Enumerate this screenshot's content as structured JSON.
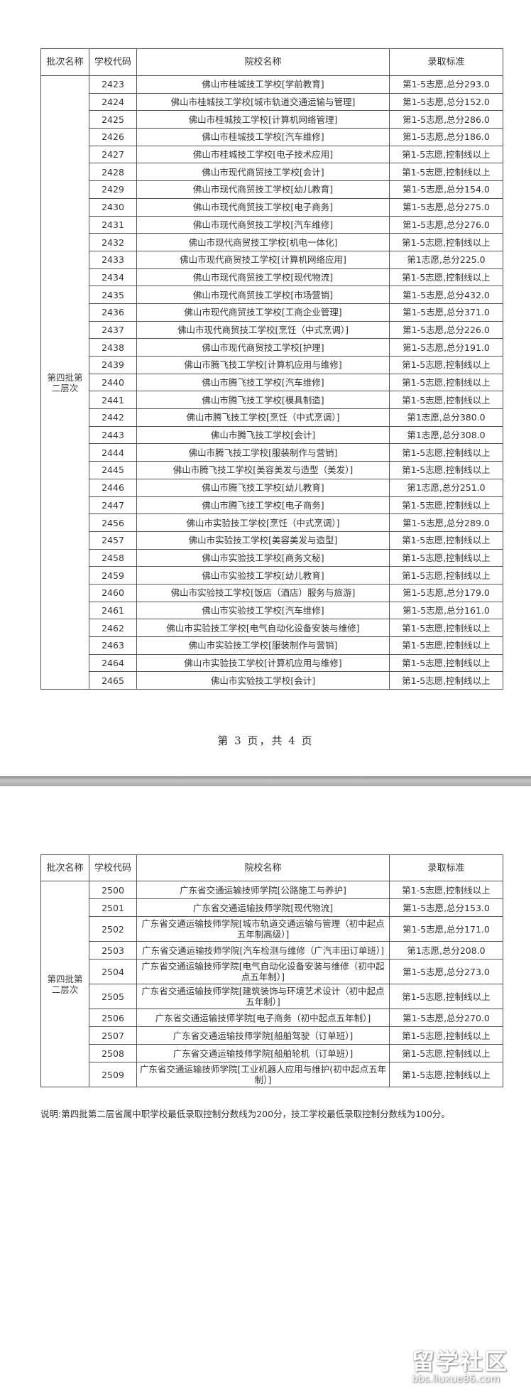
{
  "headers": [
    "批次名称",
    "学校代码",
    "院校名称",
    "录取标准"
  ],
  "batch_name": "第四批第二层次",
  "page1": {
    "rows": [
      [
        "2423",
        "佛山市桂城技工学校[学前教育]",
        "第1-5志愿,总分293.0"
      ],
      [
        "2424",
        "佛山市桂城技工学校[城市轨道交通运输与管理]",
        "第1-5志愿,总分152.0"
      ],
      [
        "2425",
        "佛山市桂城技工学校[计算机网络管理]",
        "第1-5志愿,总分286.0"
      ],
      [
        "2426",
        "佛山市桂城技工学校[汽车维修]",
        "第1-5志愿,总分186.0"
      ],
      [
        "2427",
        "佛山市桂城技工学校[电子技术应用]",
        "第1-5志愿,控制线以上"
      ],
      [
        "2428",
        "佛山市现代商贸技工学校[会计]",
        "第1-5志愿,控制线以上"
      ],
      [
        "2429",
        "佛山市现代商贸技工学校[幼儿教育]",
        "第1-5志愿,总分154.0"
      ],
      [
        "2430",
        "佛山市现代商贸技工学校[电子商务]",
        "第1-5志愿,总分275.0"
      ],
      [
        "2431",
        "佛山市现代商贸技工学校[汽车维修]",
        "第1-5志愿,总分276.0"
      ],
      [
        "2432",
        "佛山市现代商贸技工学校[机电一体化]",
        "第1-5志愿,控制线以上"
      ],
      [
        "2433",
        "佛山市现代商贸技工学校[计算机网络应用]",
        "第1志愿,总分225.0"
      ],
      [
        "2434",
        "佛山市现代商贸技工学校[现代物流]",
        "第1-5志愿,控制线以上"
      ],
      [
        "2435",
        "佛山市现代商贸技工学校[市场营销]",
        "第1-5志愿,总分432.0"
      ],
      [
        "2436",
        "佛山市现代商贸技工学校[工商企业管理]",
        "第1-5志愿,总分371.0"
      ],
      [
        "2437",
        "佛山市现代商贸技工学校[烹饪（中式烹调）]",
        "第1-5志愿,总分226.0"
      ],
      [
        "2438",
        "佛山市现代商贸技工学校[护理]",
        "第1-5志愿,总分191.0"
      ],
      [
        "2439",
        "佛山市腾飞技工学校[计算机应用与维修]",
        "第1-5志愿,控制线以上"
      ],
      [
        "2440",
        "佛山市腾飞技工学校[汽车维修]",
        "第1-5志愿,控制线以上"
      ],
      [
        "2441",
        "佛山市腾飞技工学校[模具制造]",
        "第1-5志愿,控制线以上"
      ],
      [
        "2442",
        "佛山市腾飞技工学校[烹饪（中式烹调）]",
        "第1志愿,总分380.0"
      ],
      [
        "2443",
        "佛山市腾飞技工学校[会计]",
        "第1志愿,总分308.0"
      ],
      [
        "2444",
        "佛山市腾飞技工学校[服装制作与营销]",
        "第1-5志愿,控制线以上"
      ],
      [
        "2445",
        "佛山市腾飞技工学校[美容美发与造型（美发）]",
        "第1-5志愿,控制线以上"
      ],
      [
        "2446",
        "佛山市腾飞技工学校[幼儿教育]",
        "第1志愿,总分251.0"
      ],
      [
        "2447",
        "佛山市腾飞技工学校[电子商务]",
        "第1-5志愿,控制线以上"
      ],
      [
        "2456",
        "佛山市实验技工学校[烹饪（中式烹调）]",
        "第1-5志愿,总分289.0"
      ],
      [
        "2457",
        "佛山市实验技工学校[美容美发与造型]",
        "第1-5志愿,控制线以上"
      ],
      [
        "2458",
        "佛山市实验技工学校[商务文秘]",
        "第1-5志愿,控制线以上"
      ],
      [
        "2459",
        "佛山市实验技工学校[幼儿教育]",
        "第1-5志愿,控制线以上"
      ],
      [
        "2460",
        "佛山市实验技工学校[饭店（酒店）服务与旅游]",
        "第1-5志愿,总分179.0"
      ],
      [
        "2461",
        "佛山市实验技工学校[汽车维修]",
        "第1-5志愿,总分161.0"
      ],
      [
        "2462",
        "佛山市实验技工学校[电气自动化设备安装与维修]",
        "第1-5志愿,控制线以上"
      ],
      [
        "2463",
        "佛山市实验技工学校[服装制作与营销]",
        "第1-5志愿,控制线以上"
      ],
      [
        "2464",
        "佛山市实验技工学校[计算机应用与维修]",
        "第1-5志愿,控制线以上"
      ],
      [
        "2465",
        "佛山市实验技工学校[会计]",
        "第1-5志愿,控制线以上"
      ]
    ],
    "footer": "第 3 页，共 4 页"
  },
  "page2": {
    "rows": [
      [
        "2500",
        "广东省交通运输技师学院[公路施工与养护]",
        "第1-5志愿,控制线以上"
      ],
      [
        "2501",
        "广东省交通运输技师学院[现代物流]",
        "第1-5志愿,总分153.0"
      ],
      [
        "2502",
        "广东省交通运输技师学院[城市轨道交通运输与管理（初中起点五年制高级）]",
        "第1-5志愿,总分171.0"
      ],
      [
        "2503",
        "广东省交通运输技师学院[汽车检测与维修（广汽丰田订单班）]",
        "第1志愿,总分208.0"
      ],
      [
        "2504",
        "广东省交通运输技师学院[电气自动化设备安装与维修（初中起点五年制）]",
        "第1-5志愿,总分273.0"
      ],
      [
        "2505",
        "广东省交通运输技师学院[建筑装饰与环境艺术设计（初中起点五年制）]",
        "第1-5志愿,控制线以上"
      ],
      [
        "2506",
        "广东省交通运输技师学院[电子商务（初中起点五年制）]",
        "第1-5志愿,总分270.0"
      ],
      [
        "2507",
        "广东省交通运输技师学院[船舶驾驶（订单班）]",
        "第1-5志愿,控制线以上"
      ],
      [
        "2508",
        "广东省交通运输技师学院[船舶轮机（订单班）]",
        "第1-5志愿,控制线以上"
      ],
      [
        "2509",
        "广东省交通运输技师学院[工业机器人应用与维护(初中起点五年制）]",
        "第1-5志愿,控制线以上"
      ]
    ],
    "note": "说明:第四批第二层省属中职学校最低录取控制分数线为200分，技工学校最低录取控制分数线为100分。"
  },
  "watermark": {
    "logo_text": "留学社区",
    "url": "bbs.liuxue86.com"
  },
  "colors": {
    "border": "#555555",
    "separator": "#a9a9a9"
  }
}
